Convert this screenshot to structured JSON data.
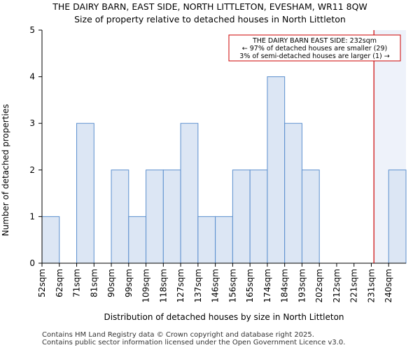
{
  "chart_data": {
    "type": "bar",
    "title": "THE DAIRY BARN, EAST SIDE, NORTH LITTLETON, EVESHAM, WR11 8QW",
    "subtitle": "Size of property relative to detached houses in North Littleton",
    "xlabel": "Distribution of detached houses by size in North Littleton",
    "ylabel": "Number of detached properties",
    "ylim": [
      0,
      5
    ],
    "yticks": [
      0,
      1,
      2,
      3,
      4,
      5
    ],
    "categories": [
      "52sqm",
      "62sqm",
      "71sqm",
      "81sqm",
      "90sqm",
      "99sqm",
      "109sqm",
      "118sqm",
      "127sqm",
      "137sqm",
      "146sqm",
      "156sqm",
      "165sqm",
      "174sqm",
      "184sqm",
      "193sqm",
      "202sqm",
      "212sqm",
      "221sqm",
      "231sqm",
      "240sqm"
    ],
    "values": [
      1,
      0,
      3,
      0,
      2,
      1,
      2,
      2,
      3,
      1,
      1,
      2,
      2,
      4,
      3,
      2,
      0,
      0,
      0,
      0,
      2
    ],
    "bar_fill": "#dce6f4",
    "bar_stroke": "#5b8fce",
    "highlight_fill": "#eef2fa",
    "marker_color": "#cc0000",
    "marker_value_sqm": 232,
    "annotation": {
      "line1": "THE DAIRY BARN EAST SIDE: 232sqm",
      "line2": "← 97% of detached houses are smaller (29)",
      "line3": "3% of semi-detached houses are larger (1) →"
    }
  },
  "footer": {
    "line1": "Contains HM Land Registry data © Crown copyright and database right 2025.",
    "line2": "Contains public sector information licensed under the Open Government Licence v3.0."
  }
}
